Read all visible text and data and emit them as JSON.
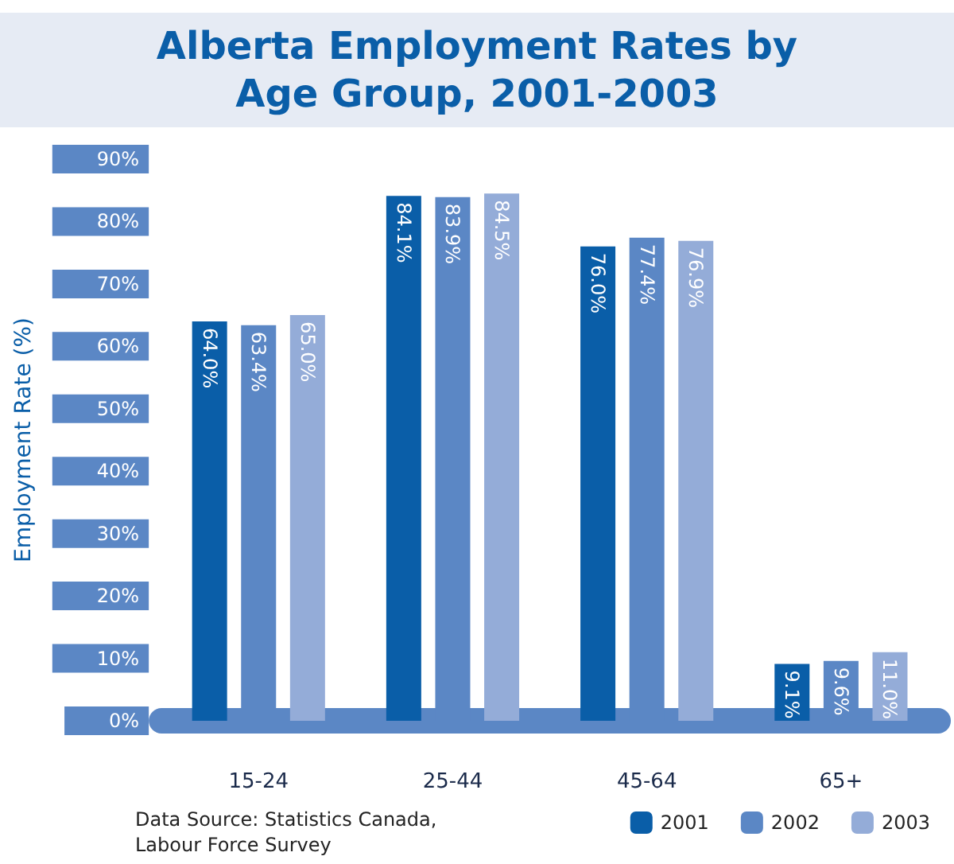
{
  "chart_data": {
    "type": "bar",
    "title": "Alberta Employment Rates by\nAge Group, 2001-2003",
    "ylabel": "Employment Rate (%)",
    "categories": [
      "15-24",
      "25-44",
      "45-64",
      "65+"
    ],
    "series": [
      {
        "name": "2001",
        "color": "#0a5ea8",
        "values": [
          64.0,
          84.1,
          76.0,
          9.1
        ]
      },
      {
        "name": "2002",
        "color": "#5b87c5",
        "values": [
          63.4,
          83.9,
          77.4,
          9.6
        ]
      },
      {
        "name": "2003",
        "color": "#94acd8",
        "values": [
          65.0,
          84.5,
          76.9,
          11.0
        ]
      }
    ],
    "ylim": [
      0,
      90
    ],
    "yticks": [
      {
        "value": 0,
        "label": "0%"
      },
      {
        "value": 10,
        "label": "10%"
      },
      {
        "value": 20,
        "label": "20%"
      },
      {
        "value": 30,
        "label": "30%"
      },
      {
        "value": 40,
        "label": "40%"
      },
      {
        "value": 50,
        "label": "50%"
      },
      {
        "value": 60,
        "label": "60%"
      },
      {
        "value": 70,
        "label": "70%"
      },
      {
        "value": 80,
        "label": "80%"
      },
      {
        "value": 90,
        "label": "90%"
      }
    ],
    "value_labels": [
      [
        "64.0%",
        "84.1%",
        "76.0%",
        "9.1%"
      ],
      [
        "63.4%",
        "83.9%",
        "77.4%",
        "9.6%"
      ],
      [
        "65.0%",
        "84.5%",
        "76.9%",
        "11.0%"
      ]
    ],
    "legend": "bottom right",
    "annotations": [
      "Data Source: Statistics Canada,\nLabour Force Survey"
    ]
  }
}
